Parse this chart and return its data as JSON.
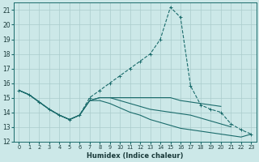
{
  "title": "",
  "xlabel": "Humidex (Indice chaleur)",
  "x_values": [
    0,
    1,
    2,
    3,
    4,
    5,
    6,
    7,
    8,
    9,
    10,
    11,
    12,
    13,
    14,
    15,
    16,
    17,
    18,
    19,
    20,
    21,
    22,
    23
  ],
  "series_main": {
    "y": [
      15.5,
      15.2,
      14.7,
      14.2,
      13.8,
      13.5,
      13.8,
      15.0,
      15.5,
      16.0,
      16.5,
      17.0,
      17.5,
      18.0,
      19.0,
      21.2,
      20.5,
      15.8,
      14.5,
      14.2,
      14.0,
      13.2,
      12.8,
      12.5
    ]
  },
  "series_line2": {
    "y": [
      15.5,
      15.2,
      14.7,
      14.2,
      13.8,
      13.5,
      13.8,
      14.8,
      15.0,
      15.0,
      15.0,
      15.0,
      15.0,
      15.0,
      15.0,
      15.0,
      14.8,
      14.7,
      14.6,
      14.5,
      14.4,
      null,
      null,
      null
    ]
  },
  "series_line3": {
    "y": [
      15.5,
      15.2,
      14.7,
      14.2,
      13.8,
      13.5,
      13.8,
      14.8,
      15.0,
      15.0,
      14.8,
      14.6,
      14.4,
      14.2,
      14.1,
      14.0,
      13.9,
      13.8,
      13.6,
      13.4,
      13.2,
      13.0,
      null,
      null
    ]
  },
  "series_line4": {
    "y": [
      15.5,
      15.2,
      14.7,
      14.2,
      13.8,
      13.5,
      13.8,
      14.8,
      14.8,
      14.6,
      14.3,
      14.0,
      13.8,
      13.5,
      13.3,
      13.1,
      12.9,
      12.8,
      12.7,
      12.6,
      12.5,
      12.4,
      12.3,
      12.5
    ]
  },
  "ylim": [
    12,
    21.5
  ],
  "xlim": [
    -0.5,
    23.5
  ],
  "yticks": [
    12,
    13,
    14,
    15,
    16,
    17,
    18,
    19,
    20,
    21
  ],
  "xticks": [
    0,
    1,
    2,
    3,
    4,
    5,
    6,
    7,
    8,
    9,
    10,
    11,
    12,
    13,
    14,
    15,
    16,
    17,
    18,
    19,
    20,
    21,
    22,
    23
  ],
  "xtick_labels": [
    "0",
    "1",
    "2",
    "3",
    "4",
    "5",
    "6",
    "7",
    "8",
    "9",
    "10",
    "11",
    "12",
    "13",
    "14",
    "15",
    "16",
    "17",
    "18",
    "19",
    "20",
    "21",
    "22",
    "23"
  ],
  "bg_color": "#cce8e8",
  "grid_color": "#aacccc",
  "line_color": "#1a6b6b"
}
